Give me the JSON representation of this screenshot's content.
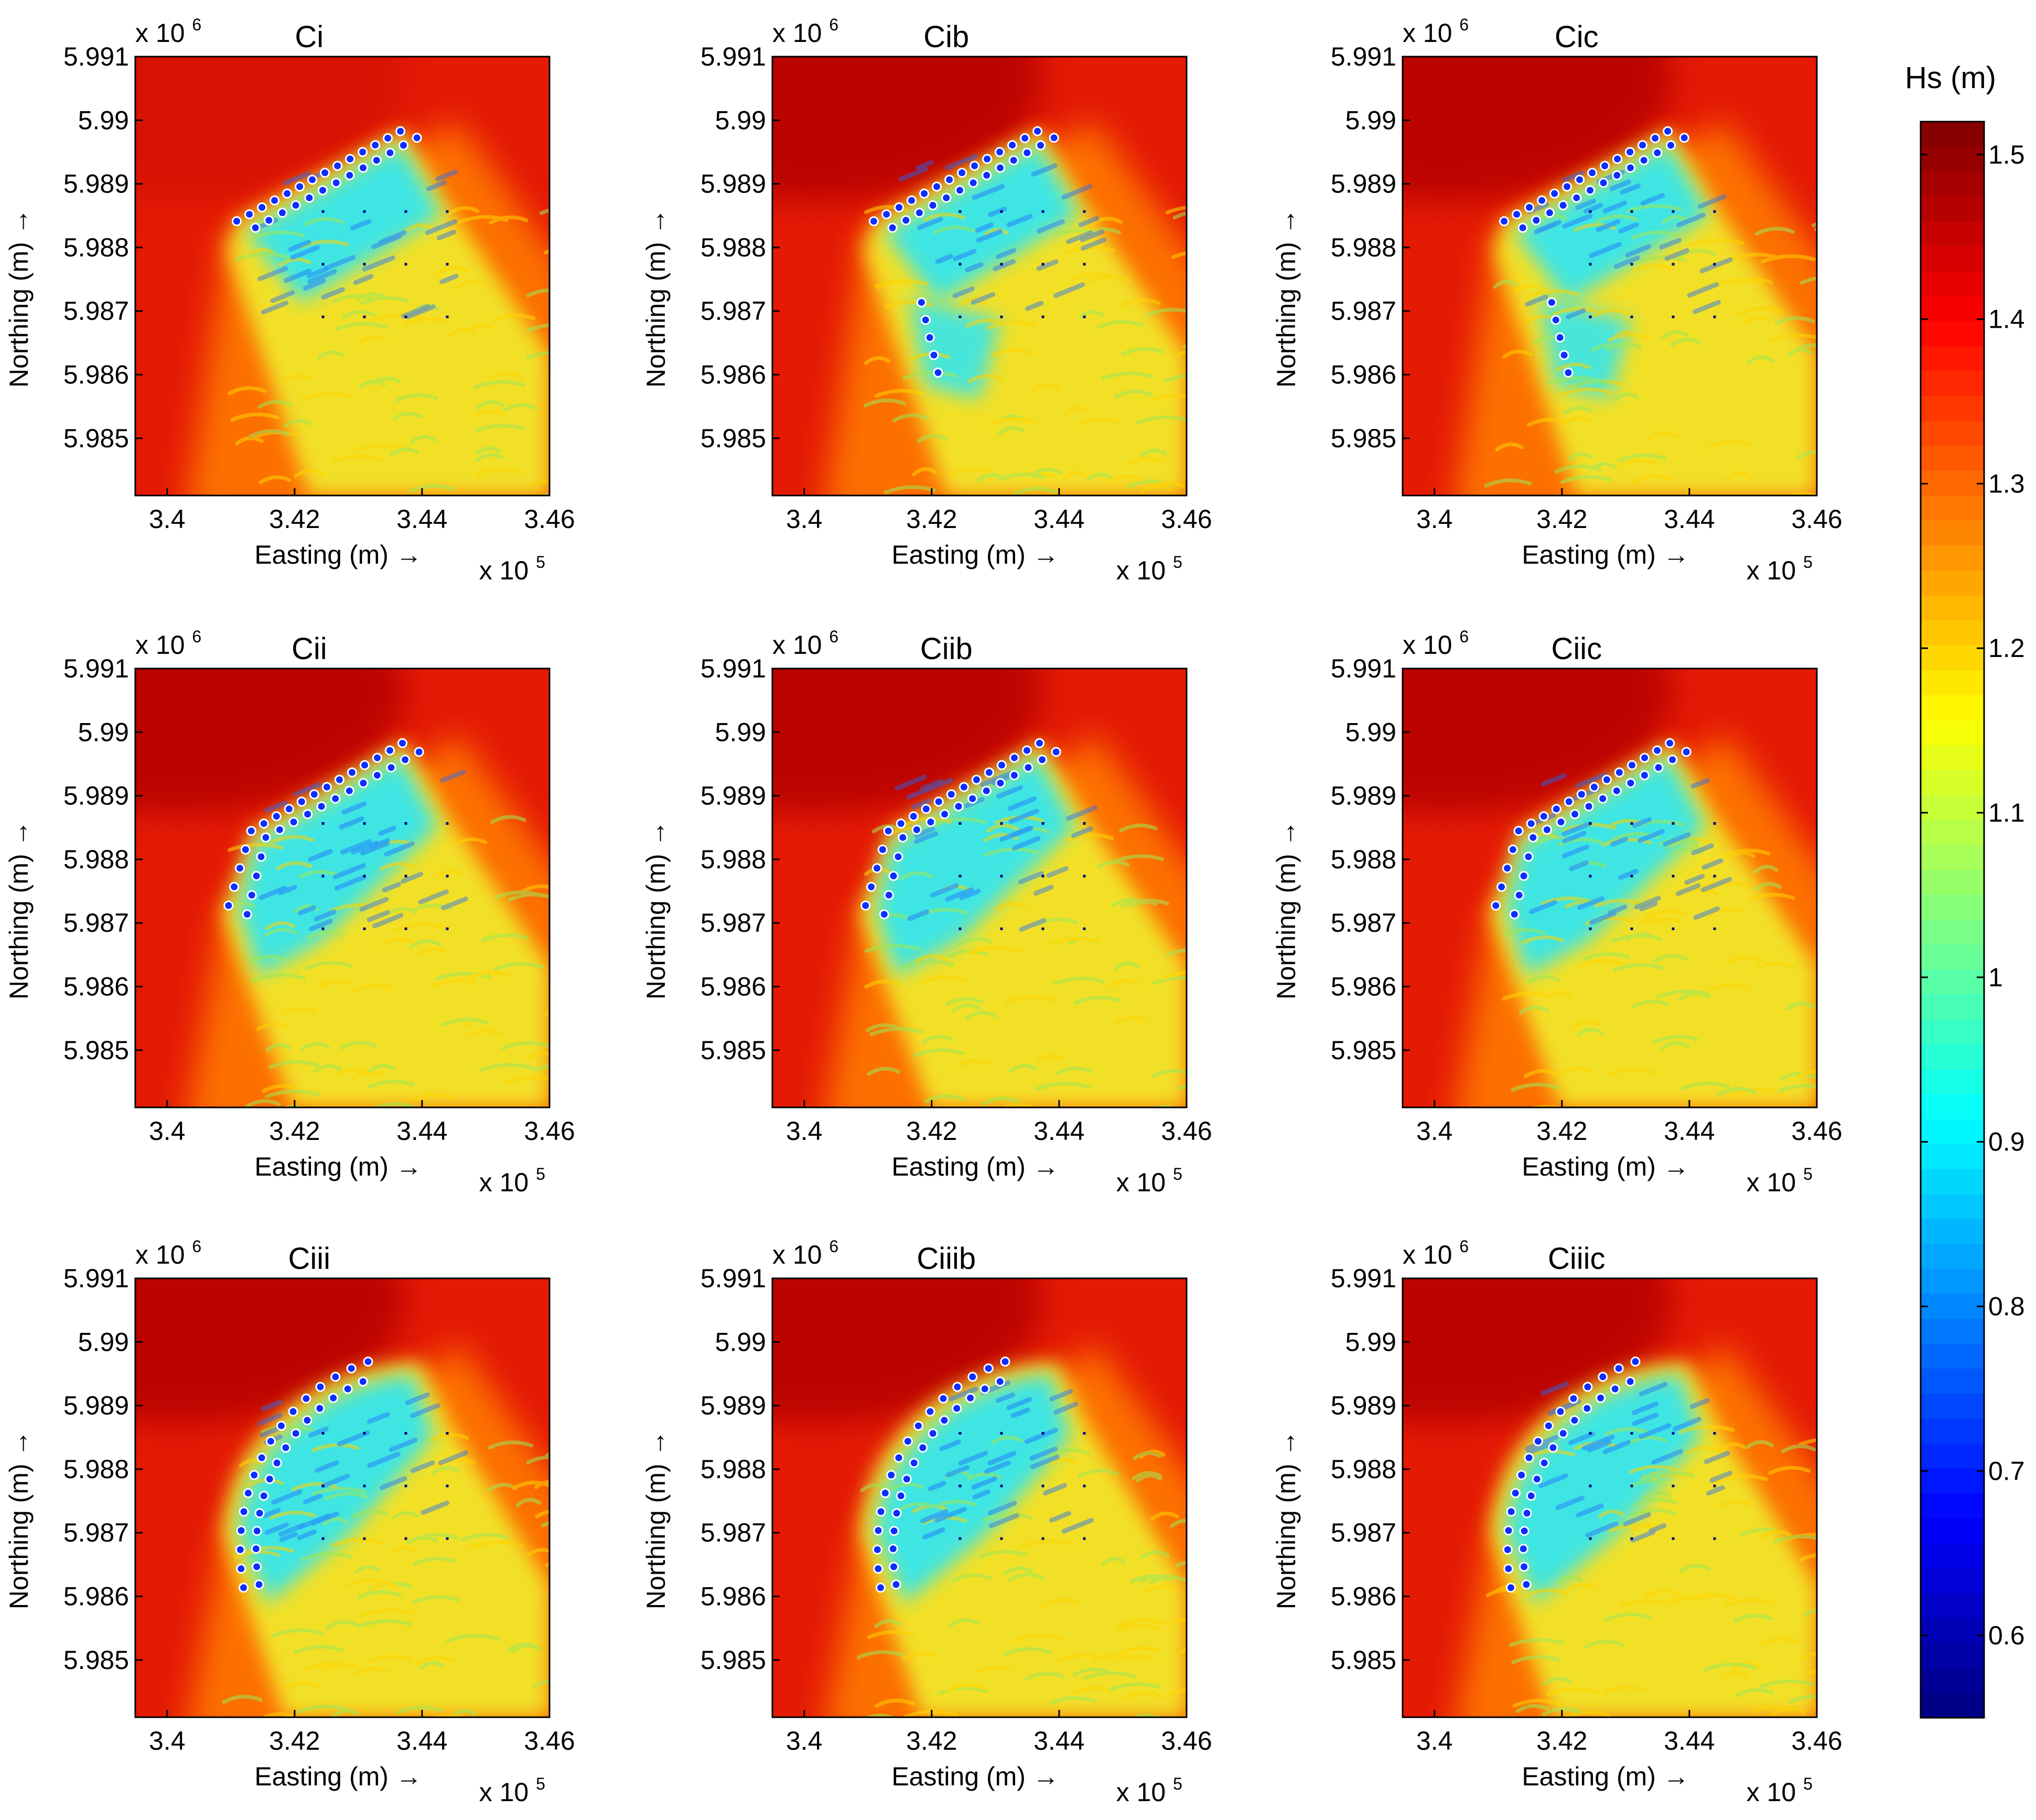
{
  "chart_data": {
    "type": "heatmap",
    "colorbar": {
      "label": "Hs (m)",
      "colormap": "jet",
      "range": [
        0.55,
        1.52
      ],
      "ticks": [
        "1.5",
        "1.4",
        "1.3",
        "1.2",
        "1.1",
        "1",
        "0.9",
        "0.8",
        "0.7",
        "0.6"
      ],
      "tick_values": [
        1.5,
        1.4,
        1.3,
        1.2,
        1.1,
        1.0,
        0.9,
        0.8,
        0.7,
        0.6
      ]
    },
    "panels": [
      {
        "title": "Ci",
        "layout": "line",
        "leeward_array": false
      },
      {
        "title": "Cib",
        "layout": "line",
        "leeward_array": true
      },
      {
        "title": "Cic",
        "layout": "line",
        "leeward_array": true
      },
      {
        "title": "Cii",
        "layout": "bent",
        "leeward_array": false
      },
      {
        "title": "Ciib",
        "layout": "bent",
        "leeward_array": false
      },
      {
        "title": "Ciic",
        "layout": "bent",
        "leeward_array": false
      },
      {
        "title": "Ciii",
        "layout": "arc",
        "leeward_array": false
      },
      {
        "title": "Ciiib",
        "layout": "arc",
        "leeward_array": false
      },
      {
        "title": "Ciiic",
        "layout": "arc",
        "leeward_array": false
      }
    ],
    "xaxis": {
      "label": "Easting (m) →",
      "ticks": [
        "3.4",
        "3.42",
        "3.44",
        "3.46"
      ],
      "tick_values": [
        3.4,
        3.42,
        3.44,
        3.46
      ],
      "multiplier_base": "x 10",
      "multiplier_exp": "5",
      "lim": [
        3.395,
        3.46
      ]
    },
    "yaxis": {
      "label": "Northing (m) →",
      "ticks": [
        "5.985",
        "5.986",
        "5.987",
        "5.988",
        "5.989",
        "5.99",
        "5.991"
      ],
      "tick_values": [
        5.985,
        5.986,
        5.987,
        5.988,
        5.989,
        5.99,
        5.991
      ],
      "multiplier_base": "x 10",
      "multiplier_exp": "6",
      "lim": [
        5.9841,
        5.991
      ]
    },
    "colors": {
      "deep_red": "#b40000",
      "red": "#e41a05",
      "orange": "#ff7a00",
      "yellow": "#f2e62a",
      "cyan": "#35e6ee",
      "blue": "#0a2fff",
      "navy": "#00007f"
    }
  }
}
